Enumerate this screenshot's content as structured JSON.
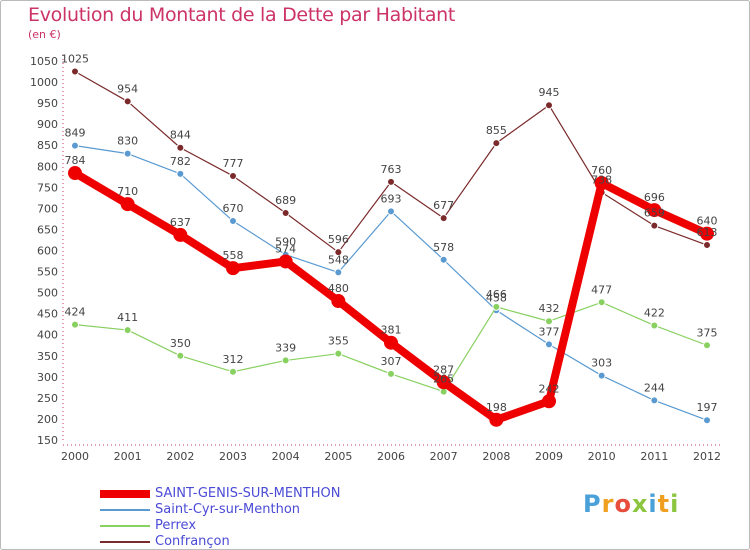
{
  "title": "Evolution du Montant de la Dette par Habitant",
  "subtitle": "(en €)",
  "logo": {
    "text": "Proxiti",
    "colors": [
      "#4aa0d8",
      "#f0a020",
      "#e84c3c",
      "#8cc63f",
      "#4aa0d8",
      "#f0a020",
      "#8cc63f"
    ]
  },
  "chart_data": {
    "type": "line",
    "x": [
      "2000",
      "2001",
      "2002",
      "2003",
      "2004",
      "2005",
      "2006",
      "2007",
      "2008",
      "2009",
      "2010",
      "2011",
      "2012"
    ],
    "ylim": [
      150,
      1050
    ],
    "yticks": [
      150,
      200,
      250,
      300,
      350,
      400,
      450,
      500,
      550,
      600,
      650,
      700,
      750,
      800,
      850,
      900,
      950,
      1000,
      1050
    ],
    "grid": false,
    "legend_position": "bottom-left",
    "series": [
      {
        "name": "SAINT-GENIS-SUR-MENTHON",
        "color": "#ee0000",
        "width": 8,
        "marker": 7,
        "values": [
          784,
          710,
          637,
          558,
          574,
          480,
          381,
          287,
          198,
          242,
          760,
          696,
          640
        ],
        "labels": [
          "784",
          "710",
          "637",
          "558",
          "574",
          "480",
          "381",
          "287",
          "198",
          "242",
          "760",
          "696",
          "640"
        ]
      },
      {
        "name": "Saint-Cyr-sur-Menthon",
        "color": "#5a9ad0",
        "width": 1.2,
        "marker": 3,
        "values": [
          849,
          830,
          782,
          670,
          590,
          548,
          693,
          578,
          458,
          377,
          303,
          244,
          197
        ],
        "labels": [
          "849",
          "830",
          "782",
          "670",
          "590",
          "548",
          "693",
          "578",
          "458",
          "377",
          "303",
          "244",
          "197"
        ]
      },
      {
        "name": "Perrex",
        "color": "#88d060",
        "width": 1.2,
        "marker": 3,
        "values": [
          424,
          411,
          350,
          312,
          339,
          355,
          307,
          265,
          466,
          432,
          477,
          422,
          375
        ],
        "labels": [
          "424",
          "411",
          "350",
          "312",
          "339",
          "355",
          "307",
          "265",
          "466",
          "432",
          "477",
          "422",
          "375"
        ]
      },
      {
        "name": "Confrançon",
        "color": "#7a2a2a",
        "width": 1.2,
        "marker": 3,
        "values": [
          1025,
          954,
          844,
          777,
          689,
          596,
          763,
          677,
          855,
          945,
          738,
          659,
          613
        ],
        "labels": [
          "1025",
          "954",
          "844",
          "777",
          "689",
          "596",
          "763",
          "677",
          "855",
          "945",
          "738",
          "659",
          "613"
        ]
      }
    ]
  }
}
